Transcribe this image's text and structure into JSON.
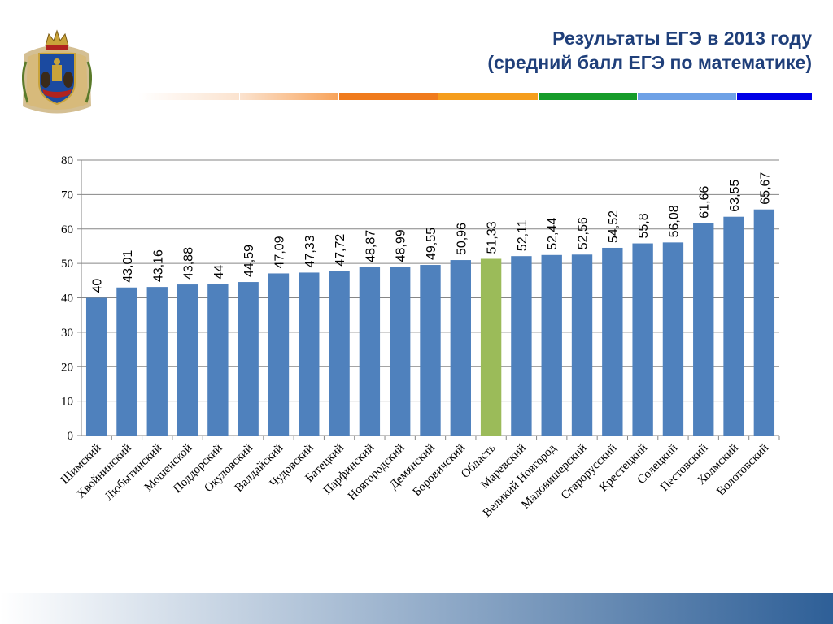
{
  "header": {
    "title_line1": "Результаты ЕГЭ в 2013 году",
    "title_line2": "(средний балл ЕГЭ по математике)"
  },
  "colors": {
    "title": "#1f3f7a",
    "bar": "#4f81bd",
    "bar_highlight": "#9bbb59",
    "grid": "#868686",
    "stripe": [
      "#fbe3cf",
      "#f8a35a",
      "#f07b1c",
      "#f59d1c",
      "#169c2a",
      "#6ea1e6",
      "#0000e6"
    ],
    "footer_from": "#ffffff",
    "footer_to": "#2e5f97"
  },
  "emblem": {
    "icon": "novgorod-coat-of-arms-icon"
  },
  "chart_data": {
    "type": "bar",
    "title": "",
    "xlabel": "",
    "ylabel": "",
    "ylim": [
      0,
      80
    ],
    "yticks": [
      0,
      10,
      20,
      30,
      40,
      50,
      60,
      70,
      80
    ],
    "grid": true,
    "legend": "none",
    "categories": [
      "Шимский",
      "Хвойнинский",
      "Любытинский",
      "Мошенской",
      "Поддорский",
      "Окуловский",
      "Валдайский",
      "Чудовский",
      "Батецкий",
      "Парфинский",
      "Новгородский",
      "Демянский",
      "Боровичский",
      "Область",
      "Маревский",
      "Великий Новгород",
      "Маловишерский",
      "Старорусский",
      "Крестецкий",
      "Солецкий",
      "Пестовский",
      "Холмский",
      "Волотовский"
    ],
    "values": [
      40,
      43.01,
      43.16,
      43.88,
      44,
      44.59,
      47.09,
      47.33,
      47.72,
      48.87,
      48.99,
      49.55,
      50.96,
      51.33,
      52.11,
      52.44,
      52.56,
      54.52,
      55.8,
      56.08,
      61.66,
      63.55,
      65.67
    ],
    "data_labels": [
      "40",
      "43,01",
      "43,16",
      "43,88",
      "44",
      "44,59",
      "47,09",
      "47,33",
      "47,72",
      "48,87",
      "48,99",
      "49,55",
      "50,96",
      "51,33",
      "52,11",
      "52,44",
      "52,56",
      "54,52",
      "55,8",
      "56,08",
      "61,66",
      "63,55",
      "65,67"
    ],
    "highlight_category": "Область"
  }
}
